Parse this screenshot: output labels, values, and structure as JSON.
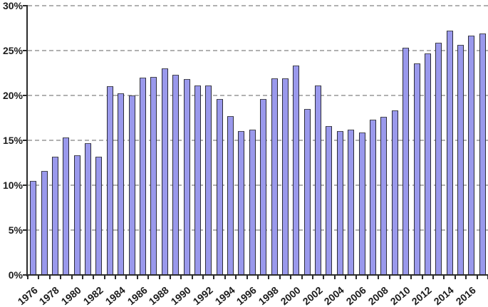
{
  "chart_data": {
    "type": "bar",
    "title": "",
    "xlabel": "",
    "ylabel": "",
    "x": [
      1976,
      1977,
      1978,
      1979,
      1980,
      1981,
      1982,
      1983,
      1984,
      1985,
      1986,
      1987,
      1988,
      1989,
      1990,
      1991,
      1992,
      1993,
      1994,
      1995,
      1996,
      1997,
      1998,
      1999,
      2000,
      2001,
      2002,
      2003,
      2004,
      2005,
      2006,
      2007,
      2008,
      2009,
      2010,
      2011,
      2012,
      2013,
      2014,
      2015,
      2016,
      2017
    ],
    "values": [
      10.5,
      11.6,
      13.2,
      15.3,
      13.3,
      14.7,
      13.2,
      21.0,
      20.2,
      20.0,
      22.0,
      22.1,
      23.0,
      22.3,
      21.8,
      21.1,
      21.1,
      19.6,
      17.7,
      16.0,
      16.2,
      19.6,
      21.9,
      21.9,
      23.3,
      18.5,
      21.1,
      16.6,
      16.0,
      16.2,
      15.9,
      17.3,
      17.6,
      18.3,
      25.3,
      23.6,
      24.7,
      25.9,
      27.2,
      25.6,
      26.7,
      26.9
    ],
    "ylim": [
      0,
      30
    ],
    "yticks": [
      0,
      5,
      10,
      15,
      20,
      25,
      30
    ],
    "ytick_labels": [
      "0%",
      "5%",
      "10%",
      "15%",
      "20%",
      "25%",
      "30%"
    ],
    "xtick_labeled_years": [
      1976,
      1978,
      1980,
      1982,
      1984,
      1986,
      1988,
      1990,
      1992,
      1994,
      1996,
      1998,
      2000,
      2002,
      2004,
      2006,
      2008,
      2010,
      2012,
      2014,
      2016
    ],
    "grid": "horizontal-dashed",
    "legend": "none",
    "colors": {
      "bar_fill": "#9a99ec",
      "bar_border": "#2c2c38",
      "gridline": "#a3a3a3",
      "axis": "#2b2b2b",
      "label_text": "#1c1c1c",
      "background": "#ffffff"
    }
  }
}
